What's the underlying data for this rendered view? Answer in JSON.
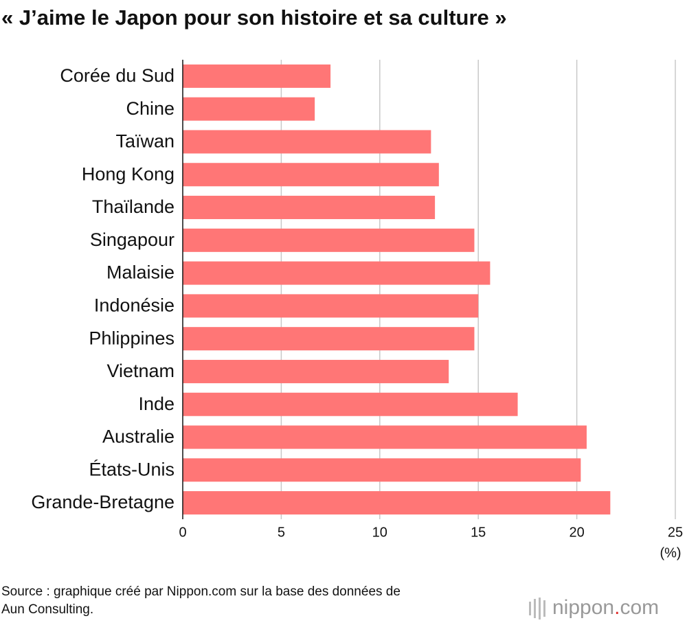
{
  "chart_data": {
    "type": "bar",
    "orientation": "horizontal",
    "title": "« J’aime le Japon pour son histoire et sa culture »",
    "categories": [
      "Corée du Sud",
      "Chine",
      "Taïwan",
      "Hong Kong",
      "Thaïlande",
      "Singapour",
      "Malaisie",
      "Indonésie",
      "Phlippines",
      "Vietnam",
      "Inde",
      "Australie",
      "États-Unis",
      "Grande-Bretagne"
    ],
    "values": [
      7.5,
      6.7,
      12.6,
      13.0,
      12.8,
      14.8,
      15.6,
      15.0,
      14.8,
      13.5,
      17.0,
      20.5,
      20.2,
      21.7
    ],
    "color": "#ff7676",
    "xlim": [
      0,
      25
    ],
    "xticks": [
      0,
      5,
      10,
      15,
      20,
      25
    ],
    "grid": true,
    "x_unit": "(%)",
    "source": [
      "Source : graphique créé par Nippon.com sur la base des données de",
      "Aun Consulting."
    ],
    "logo": {
      "name": "nippon",
      "dot": ".",
      "suffix": "com"
    }
  }
}
